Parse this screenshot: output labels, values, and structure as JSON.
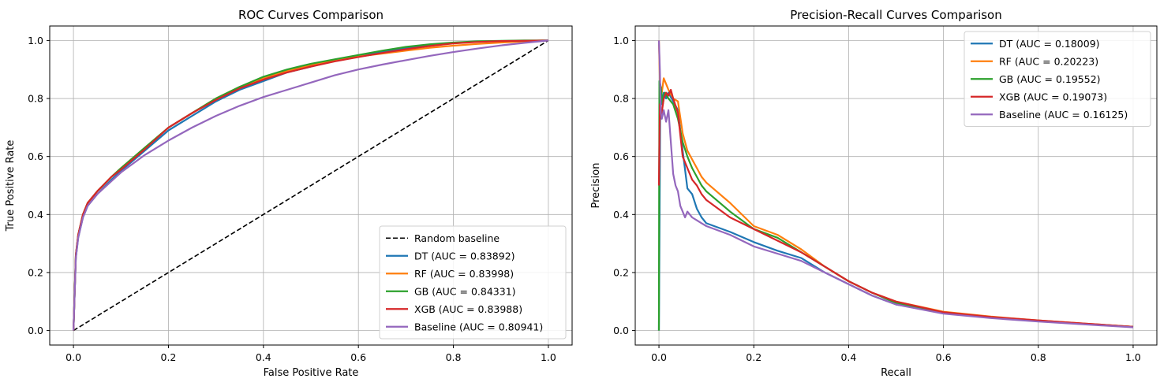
{
  "chart_data": [
    {
      "type": "line",
      "title": "ROC Curves Comparison",
      "xlabel": "False Positive Rate",
      "ylabel": "True Positive Rate",
      "xlim": [
        -0.05,
        1.05
      ],
      "ylim": [
        -0.05,
        1.05
      ],
      "xticks": [
        "0.0",
        "0.2",
        "0.4",
        "0.6",
        "0.8",
        "1.0"
      ],
      "yticks": [
        "0.0",
        "0.2",
        "0.4",
        "0.6",
        "0.8",
        "1.0"
      ],
      "grid": true,
      "legend_position": "lower-right",
      "series": [
        {
          "name": "Random baseline",
          "color": "#000000",
          "dashed": true,
          "x": [
            0,
            1
          ],
          "y": [
            0,
            1
          ]
        },
        {
          "name": "DT (AUC = 0.83892)",
          "color": "#1f77b4",
          "x": [
            0,
            0.005,
            0.01,
            0.02,
            0.03,
            0.05,
            0.08,
            0.1,
            0.15,
            0.2,
            0.25,
            0.3,
            0.35,
            0.4,
            0.45,
            0.5,
            0.55,
            0.6,
            0.65,
            0.7,
            0.75,
            0.8,
            0.85,
            0.9,
            0.95,
            1.0
          ],
          "y": [
            0,
            0.25,
            0.32,
            0.39,
            0.43,
            0.47,
            0.52,
            0.55,
            0.62,
            0.69,
            0.74,
            0.79,
            0.83,
            0.86,
            0.89,
            0.91,
            0.93,
            0.945,
            0.96,
            0.975,
            0.985,
            0.992,
            0.996,
            0.998,
            0.999,
            1.0
          ]
        },
        {
          "name": "RF (AUC = 0.83998)",
          "color": "#ff7f0e",
          "x": [
            0,
            0.005,
            0.01,
            0.02,
            0.03,
            0.05,
            0.08,
            0.1,
            0.15,
            0.2,
            0.25,
            0.3,
            0.35,
            0.4,
            0.45,
            0.5,
            0.55,
            0.6,
            0.65,
            0.7,
            0.75,
            0.8,
            0.85,
            0.9,
            0.95,
            1.0
          ],
          "y": [
            0,
            0.26,
            0.33,
            0.4,
            0.44,
            0.48,
            0.53,
            0.56,
            0.63,
            0.7,
            0.75,
            0.8,
            0.84,
            0.87,
            0.895,
            0.915,
            0.93,
            0.945,
            0.955,
            0.965,
            0.975,
            0.982,
            0.988,
            0.993,
            0.997,
            1.0
          ]
        },
        {
          "name": "GB (AUC = 0.84331)",
          "color": "#2ca02c",
          "x": [
            0,
            0.005,
            0.01,
            0.02,
            0.03,
            0.05,
            0.08,
            0.1,
            0.15,
            0.2,
            0.25,
            0.3,
            0.35,
            0.4,
            0.45,
            0.5,
            0.55,
            0.6,
            0.65,
            0.7,
            0.75,
            0.8,
            0.85,
            0.9,
            0.95,
            1.0
          ],
          "y": [
            0,
            0.26,
            0.33,
            0.4,
            0.44,
            0.48,
            0.53,
            0.56,
            0.63,
            0.7,
            0.75,
            0.8,
            0.84,
            0.875,
            0.9,
            0.92,
            0.935,
            0.95,
            0.965,
            0.978,
            0.987,
            0.993,
            0.997,
            0.999,
            1.0,
            1.0
          ]
        },
        {
          "name": "XGB (AUC = 0.83988)",
          "color": "#d62728",
          "x": [
            0,
            0.005,
            0.01,
            0.02,
            0.03,
            0.05,
            0.08,
            0.1,
            0.15,
            0.2,
            0.25,
            0.3,
            0.35,
            0.4,
            0.45,
            0.5,
            0.55,
            0.6,
            0.65,
            0.7,
            0.75,
            0.8,
            0.85,
            0.9,
            0.95,
            1.0
          ],
          "y": [
            0,
            0.26,
            0.33,
            0.4,
            0.44,
            0.48,
            0.53,
            0.555,
            0.625,
            0.7,
            0.75,
            0.795,
            0.835,
            0.865,
            0.89,
            0.91,
            0.928,
            0.943,
            0.957,
            0.97,
            0.981,
            0.99,
            0.995,
            0.998,
            0.999,
            1.0
          ]
        },
        {
          "name": "Baseline (AUC = 0.80941)",
          "color": "#9467bd",
          "x": [
            0,
            0.005,
            0.01,
            0.02,
            0.03,
            0.05,
            0.08,
            0.1,
            0.15,
            0.2,
            0.25,
            0.3,
            0.35,
            0.4,
            0.45,
            0.5,
            0.55,
            0.6,
            0.65,
            0.7,
            0.75,
            0.8,
            0.85,
            0.9,
            0.95,
            1.0
          ],
          "y": [
            0,
            0.25,
            0.32,
            0.39,
            0.43,
            0.47,
            0.515,
            0.545,
            0.605,
            0.655,
            0.7,
            0.74,
            0.775,
            0.805,
            0.83,
            0.855,
            0.88,
            0.9,
            0.917,
            0.932,
            0.947,
            0.96,
            0.972,
            0.983,
            0.992,
            1.0
          ]
        }
      ]
    },
    {
      "type": "line",
      "title": "Precision-Recall Curves Comparison",
      "xlabel": "Recall",
      "ylabel": "Precision",
      "xlim": [
        -0.05,
        1.05
      ],
      "ylim": [
        -0.05,
        1.05
      ],
      "xticks": [
        "0.0",
        "0.2",
        "0.4",
        "0.6",
        "0.8",
        "1.0"
      ],
      "yticks": [
        "0.0",
        "0.2",
        "0.4",
        "0.6",
        "0.8",
        "1.0"
      ],
      "grid": true,
      "legend_position": "top-right",
      "series": [
        {
          "name": "DT (AUC = 0.18009)",
          "color": "#1f77b4",
          "x": [
            0,
            0.003,
            0.006,
            0.01,
            0.015,
            0.02,
            0.03,
            0.04,
            0.05,
            0.06,
            0.07,
            0.08,
            0.09,
            0.1,
            0.15,
            0.2,
            0.25,
            0.3,
            0.35,
            0.4,
            0.45,
            0.5,
            0.6,
            0.7,
            0.8,
            0.9,
            1.0
          ],
          "y": [
            0,
            0.85,
            0.78,
            0.82,
            0.8,
            0.82,
            0.79,
            0.76,
            0.62,
            0.49,
            0.47,
            0.42,
            0.39,
            0.37,
            0.34,
            0.305,
            0.275,
            0.25,
            0.2,
            0.16,
            0.12,
            0.09,
            0.06,
            0.045,
            0.033,
            0.022,
            0.012
          ]
        },
        {
          "name": "RF (AUC = 0.20223)",
          "color": "#ff7f0e",
          "x": [
            0,
            0.003,
            0.006,
            0.01,
            0.015,
            0.02,
            0.03,
            0.04,
            0.05,
            0.06,
            0.07,
            0.08,
            0.09,
            0.1,
            0.15,
            0.2,
            0.25,
            0.3,
            0.35,
            0.4,
            0.45,
            0.5,
            0.6,
            0.7,
            0.8,
            0.9,
            1.0
          ],
          "y": [
            1.0,
            0.8,
            0.82,
            0.87,
            0.85,
            0.83,
            0.8,
            0.79,
            0.68,
            0.62,
            0.59,
            0.56,
            0.53,
            0.51,
            0.44,
            0.36,
            0.33,
            0.28,
            0.22,
            0.17,
            0.13,
            0.1,
            0.065,
            0.048,
            0.035,
            0.024,
            0.013
          ]
        },
        {
          "name": "GB (AUC = 0.19552)",
          "color": "#2ca02c",
          "x": [
            0,
            0.0005,
            0.001,
            0.002,
            0.004,
            0.008,
            0.012,
            0.02,
            0.03,
            0.04,
            0.05,
            0.06,
            0.07,
            0.08,
            0.09,
            0.1,
            0.15,
            0.2,
            0.25,
            0.3,
            0.35,
            0.4,
            0.45,
            0.5,
            0.6,
            0.7,
            0.8,
            0.9,
            1.0
          ],
          "y": [
            0,
            0.5,
            0.86,
            0.8,
            0.84,
            0.78,
            0.82,
            0.8,
            0.78,
            0.73,
            0.65,
            0.6,
            0.56,
            0.53,
            0.5,
            0.48,
            0.41,
            0.35,
            0.32,
            0.27,
            0.22,
            0.17,
            0.13,
            0.095,
            0.062,
            0.046,
            0.034,
            0.023,
            0.013
          ]
        },
        {
          "name": "XGB (AUC = 0.19073)",
          "color": "#d62728",
          "x": [
            0,
            0.002,
            0.005,
            0.01,
            0.015,
            0.02,
            0.025,
            0.03,
            0.04,
            0.05,
            0.06,
            0.07,
            0.08,
            0.09,
            0.1,
            0.15,
            0.2,
            0.25,
            0.3,
            0.35,
            0.4,
            0.45,
            0.5,
            0.6,
            0.7,
            0.8,
            0.9,
            1.0
          ],
          "y": [
            0.5,
            0.78,
            0.74,
            0.8,
            0.82,
            0.81,
            0.83,
            0.8,
            0.75,
            0.6,
            0.56,
            0.52,
            0.5,
            0.47,
            0.45,
            0.39,
            0.35,
            0.31,
            0.27,
            0.22,
            0.17,
            0.13,
            0.1,
            0.063,
            0.047,
            0.035,
            0.024,
            0.013
          ]
        },
        {
          "name": "Baseline (AUC = 0.16125)",
          "color": "#9467bd",
          "x": [
            0,
            0.002,
            0.004,
            0.006,
            0.01,
            0.015,
            0.02,
            0.025,
            0.03,
            0.035,
            0.04,
            0.045,
            0.05,
            0.055,
            0.06,
            0.065,
            0.07,
            0.08,
            0.09,
            0.1,
            0.15,
            0.2,
            0.25,
            0.3,
            0.35,
            0.4,
            0.45,
            0.5,
            0.6,
            0.7,
            0.8,
            0.9,
            1.0
          ],
          "y": [
            1.0,
            0.9,
            0.75,
            0.73,
            0.76,
            0.72,
            0.76,
            0.65,
            0.54,
            0.5,
            0.48,
            0.43,
            0.41,
            0.39,
            0.41,
            0.4,
            0.39,
            0.38,
            0.37,
            0.36,
            0.33,
            0.29,
            0.265,
            0.24,
            0.2,
            0.16,
            0.12,
            0.09,
            0.058,
            0.043,
            0.031,
            0.021,
            0.011
          ]
        }
      ]
    }
  ]
}
